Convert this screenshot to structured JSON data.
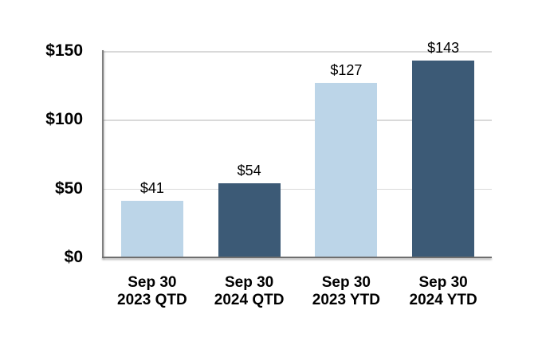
{
  "chart_data": {
    "type": "bar",
    "title": "",
    "categories": [
      "Sep 30 2023 QTD",
      "Sep 30 2024 QTD",
      "Sep 30 2023 YTD",
      "Sep 30 2024 YTD"
    ],
    "category_lines": [
      [
        "Sep 30",
        "2023 QTD"
      ],
      [
        "Sep 30",
        "2024 QTD"
      ],
      [
        "Sep 30",
        "2023 YTD"
      ],
      [
        "Sep 30",
        "2024 YTD"
      ]
    ],
    "values": [
      41,
      54,
      127,
      143
    ],
    "data_labels": [
      "$41",
      "$54",
      "$127",
      "$143"
    ],
    "bar_colors": [
      "#BCD5E8",
      "#3C5A76",
      "#BCD5E8",
      "#3C5A76"
    ],
    "y_axis": {
      "min": 0,
      "max": 150,
      "ticks": [
        {
          "value": 0,
          "label": "$0"
        },
        {
          "value": 50,
          "label": "$50"
        },
        {
          "value": 100,
          "label": "$100"
        },
        {
          "value": 150,
          "label": "$150"
        }
      ]
    },
    "gridline_values": [
      50,
      100,
      150
    ],
    "legend": "none",
    "grid": "on",
    "colors": {
      "light_blue": "#BCD5E8",
      "dark_blue": "#3C5A76",
      "gridline": "#D9D9D9",
      "axis": "#7F7F7F",
      "label_text": "#000000",
      "background": "#FFFFFF"
    }
  }
}
